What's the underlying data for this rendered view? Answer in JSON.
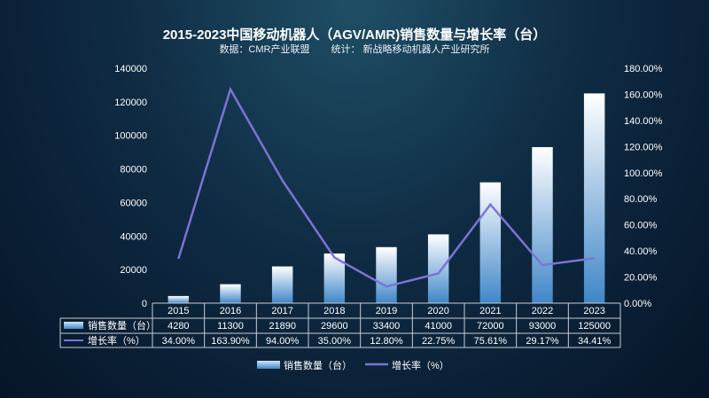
{
  "chart_data": {
    "type": "bar+line",
    "title": "2015-2023中国移动机器人（AGV/AMR)销售数量与增长率（台）",
    "subtitle_source": "数据：CMR产业联盟",
    "subtitle_stat": "统计： 新战略移动机器人产业研究所",
    "categories": [
      "2015",
      "2016",
      "2017",
      "2018",
      "2019",
      "2020",
      "2021",
      "2022",
      "2023"
    ],
    "series": [
      {
        "name": "销售数量（台）",
        "type": "bar",
        "axis": "left",
        "values": [
          4280,
          11300,
          21890,
          29600,
          33400,
          41000,
          72000,
          93000,
          125000
        ],
        "labels": [
          "4280",
          "11300",
          "21890",
          "29600",
          "33400",
          "41000",
          "72000",
          "93000",
          "125000"
        ]
      },
      {
        "name": "增长率（%）",
        "type": "line",
        "axis": "right",
        "values": [
          34.0,
          163.9,
          94.0,
          35.0,
          12.8,
          22.75,
          75.61,
          29.17,
          34.41
        ],
        "labels": [
          "34.00%",
          "163.90%",
          "94.00%",
          "35.00%",
          "12.80%",
          "22.75%",
          "75.61%",
          "29.17%",
          "34.41%"
        ]
      }
    ],
    "ylim_left": [
      0,
      140000
    ],
    "yticks_left": [
      "0",
      "20000",
      "40000",
      "60000",
      "80000",
      "100000",
      "120000",
      "140000"
    ],
    "ylim_right": [
      0,
      180
    ],
    "yticks_right": [
      "0.00%",
      "20.00%",
      "40.00%",
      "60.00%",
      "80.00%",
      "100.00%",
      "120.00%",
      "140.00%",
      "160.00%",
      "180.00%"
    ],
    "grid": false,
    "legend": "bottom",
    "data_table": true,
    "colors": {
      "bar_top": "#ffffff",
      "bar_bottom": "#3f86c8",
      "line": "#7b74d6"
    }
  }
}
